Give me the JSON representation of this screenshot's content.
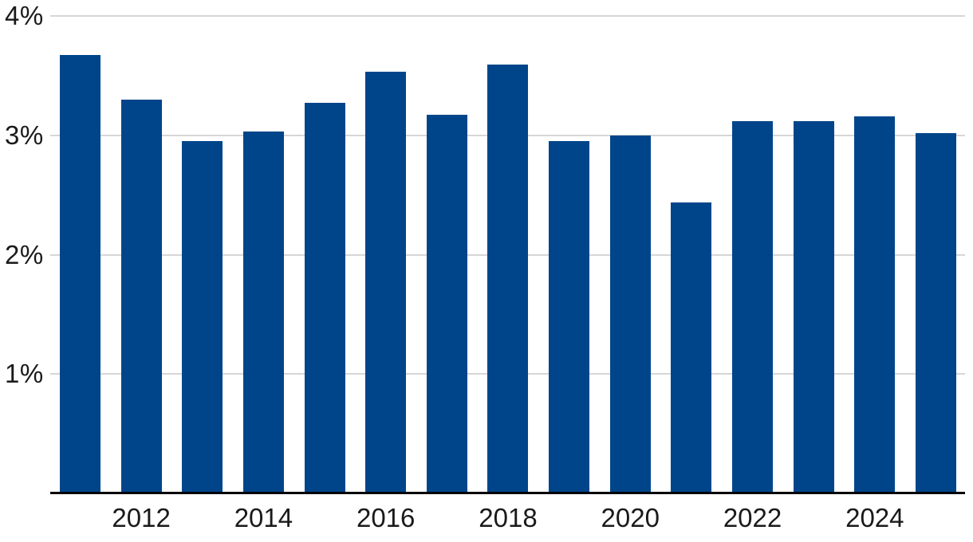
{
  "chart_data": {
    "type": "bar",
    "title": "",
    "xlabel": "",
    "ylabel": "",
    "categories": [
      2011,
      2012,
      2013,
      2014,
      2015,
      2016,
      2017,
      2018,
      2019,
      2020,
      2021,
      2022,
      2023,
      2024,
      2025
    ],
    "values": [
      3.67,
      3.3,
      2.95,
      3.03,
      3.27,
      3.53,
      3.17,
      3.59,
      2.95,
      3.0,
      2.44,
      3.12,
      3.12,
      3.16,
      3.02
    ],
    "ylim": [
      0,
      4
    ],
    "grid": true,
    "legend_position": "none",
    "yticks": [
      {
        "value": 1,
        "label": "1%"
      },
      {
        "value": 2,
        "label": "2%"
      },
      {
        "value": 3,
        "label": "3%"
      },
      {
        "value": 4,
        "label": "4%"
      }
    ],
    "xticks": [
      {
        "year": 2012,
        "label": "2012"
      },
      {
        "year": 2014,
        "label": "2014"
      },
      {
        "year": 2016,
        "label": "2016"
      },
      {
        "year": 2018,
        "label": "2018"
      },
      {
        "year": 2020,
        "label": "2020"
      },
      {
        "year": 2022,
        "label": "2022"
      },
      {
        "year": 2024,
        "label": "2024"
      }
    ],
    "colors": {
      "bar": "#00458A",
      "gridline": "#D6D6D6",
      "axis": "#000000",
      "text": "#1A1A1A",
      "background": "#FFFFFF"
    }
  }
}
